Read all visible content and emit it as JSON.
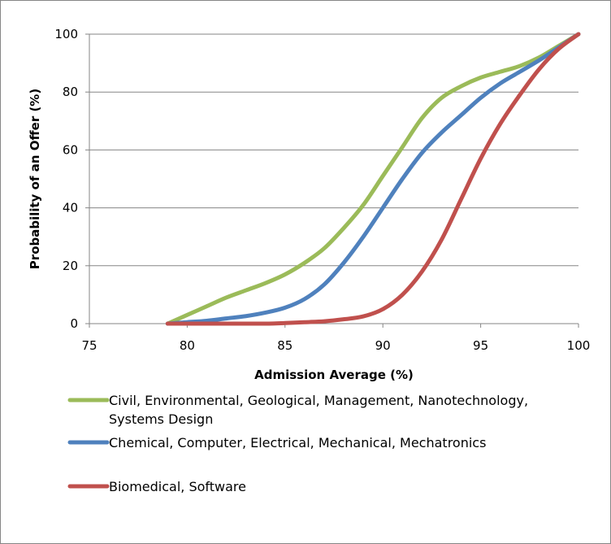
{
  "chart_data": {
    "type": "line",
    "title": "",
    "xlabel": "Admission Average (%)",
    "ylabel": "Probability of an Offer (%)",
    "xlim": [
      75,
      100
    ],
    "ylim": [
      0,
      100
    ],
    "xticks": [
      "75",
      "80",
      "85",
      "90",
      "95",
      "100"
    ],
    "yticks": [
      "0",
      "20",
      "40",
      "60",
      "80",
      "100"
    ],
    "grid": "horizontal",
    "legend_position": "bottom",
    "series": [
      {
        "name": "Civil, Environmental, Geological, Management, Nanotechnology, Systems Design",
        "legend_lines": [
          "Civil, Environmental, Geological, Management, Nanotechnology,",
          "Systems Design"
        ],
        "color": "#9bbb59",
        "x": [
          79,
          80,
          81,
          82,
          83,
          84,
          85,
          86,
          87,
          88,
          89,
          90,
          91,
          92,
          93,
          94,
          95,
          96,
          97,
          98,
          99,
          100
        ],
        "y": [
          0,
          3,
          6,
          9,
          11.5,
          14,
          17,
          21,
          26,
          33,
          41,
          51,
          61,
          71,
          78,
          82,
          85,
          87,
          89,
          92,
          96,
          100
        ]
      },
      {
        "name": "Chemical, Computer, Electrical, Mechanical, Mechatronics",
        "legend_lines": [
          "Chemical, Computer, Electrical, Mechanical, Mechatronics"
        ],
        "color": "#4f81bd",
        "x": [
          79,
          80,
          81,
          82,
          83,
          84,
          85,
          86,
          87,
          88,
          89,
          90,
          91,
          92,
          93,
          94,
          95,
          96,
          97,
          98,
          99,
          100
        ],
        "y": [
          0,
          0.5,
          1,
          1.8,
          2.6,
          3.8,
          5.5,
          8.5,
          13.5,
          21,
          30,
          40,
          50,
          59,
          66,
          72,
          78,
          83,
          87,
          91,
          95.5,
          100
        ]
      },
      {
        "name": "Biomedical, Software",
        "legend_lines": [
          "Biomedical, Software"
        ],
        "color": "#c0504d",
        "x": [
          79,
          80,
          81,
          82,
          83,
          84,
          85,
          86,
          87,
          88,
          89,
          90,
          91,
          92,
          93,
          94,
          95,
          96,
          97,
          98,
          99,
          100
        ],
        "y": [
          0,
          0,
          0,
          0,
          0,
          0,
          0.2,
          0.5,
          0.8,
          1.5,
          2.5,
          5,
          10,
          18,
          29,
          43,
          57,
          69,
          79,
          88,
          95,
          100
        ]
      }
    ]
  }
}
